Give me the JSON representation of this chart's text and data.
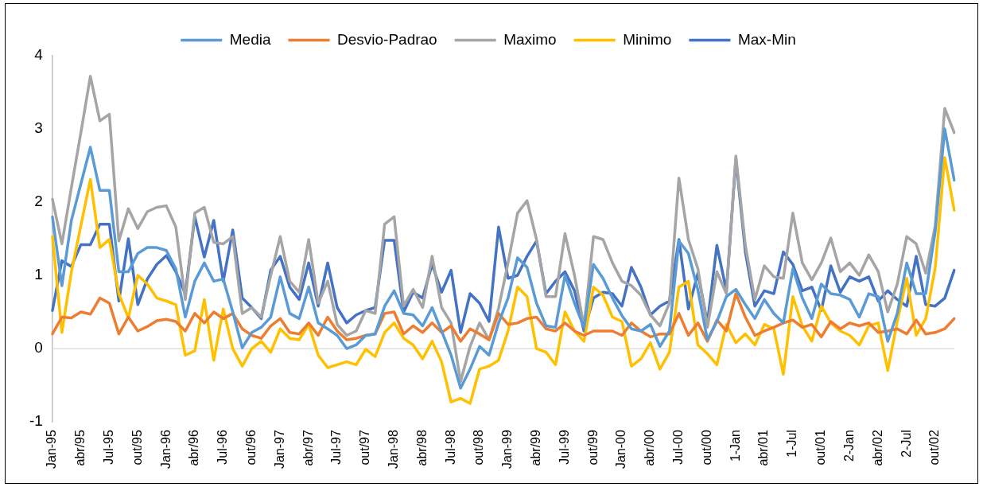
{
  "chart_data": {
    "type": "line",
    "categories": [
      "Jan-95",
      null,
      null,
      "abr/95",
      null,
      null,
      "Jul-95",
      null,
      null,
      "out/95",
      null,
      null,
      "Jan-96",
      null,
      null,
      "abr/96",
      null,
      null,
      "Jul-96",
      null,
      null,
      "out/96",
      null,
      null,
      "Jan-97",
      null,
      null,
      "abr/97",
      null,
      null,
      "Jul-97",
      null,
      null,
      "out/97",
      null,
      null,
      "Jan-98",
      null,
      null,
      "abr/98",
      null,
      null,
      "Jul-98",
      null,
      null,
      "out/98",
      null,
      null,
      "Jan-99",
      null,
      null,
      "abr/99",
      null,
      null,
      "Jul-99",
      null,
      null,
      "out/99",
      null,
      null,
      "Jan-00",
      null,
      null,
      "abr/00",
      null,
      null,
      "Jul-00",
      null,
      null,
      "out/00",
      null,
      null,
      "1-Jan",
      null,
      null,
      "abr/01",
      null,
      null,
      "1-Jul",
      null,
      null,
      "out/01",
      null,
      null,
      "2-Jan",
      null,
      null,
      "abr/02",
      null,
      null,
      "2-Jul",
      null,
      null,
      "out/02",
      null,
      null
    ],
    "series": [
      {
        "name": "Media",
        "color": "#5b9bd5",
        "values": [
          1.8,
          0.86,
          1.75,
          2.25,
          2.75,
          2.16,
          2.16,
          1.05,
          1.05,
          1.3,
          1.38,
          1.38,
          1.34,
          1.09,
          0.43,
          0.92,
          1.17,
          0.92,
          0.95,
          0.5,
          0.01,
          0.22,
          0.29,
          0.43,
          0.98,
          0.48,
          0.41,
          0.84,
          0.35,
          0.27,
          0.18,
          0.0,
          0.05,
          0.18,
          0.2,
          0.58,
          0.79,
          0.48,
          0.46,
          0.31,
          0.56,
          0.24,
          -0.09,
          -0.54,
          -0.28,
          0.03,
          -0.09,
          0.35,
          0.69,
          1.24,
          1.11,
          0.62,
          0.31,
          0.29,
          1.0,
          0.62,
          0.29,
          1.15,
          0.96,
          0.69,
          0.45,
          0.27,
          0.24,
          0.33,
          0.03,
          0.24,
          1.47,
          1.3,
          0.8,
          0.12,
          0.37,
          0.71,
          0.81,
          0.6,
          0.41,
          0.67,
          0.48,
          0.35,
          1.09,
          0.69,
          0.41,
          0.88,
          0.75,
          0.73,
          0.67,
          0.43,
          0.75,
          0.71,
          0.1,
          0.48,
          1.17,
          0.75,
          0.75,
          1.6,
          3.0,
          2.3
        ]
      },
      {
        "name": "Desvio-Padrao",
        "color": "#ed7d31",
        "values": [
          0.2,
          0.43,
          0.42,
          0.5,
          0.47,
          0.69,
          0.62,
          0.2,
          0.43,
          0.24,
          0.3,
          0.38,
          0.4,
          0.37,
          0.24,
          0.48,
          0.35,
          0.5,
          0.41,
          0.48,
          0.27,
          0.18,
          0.14,
          0.31,
          0.41,
          0.22,
          0.2,
          0.35,
          0.18,
          0.43,
          0.24,
          0.12,
          0.14,
          0.18,
          0.2,
          0.48,
          0.5,
          0.2,
          0.31,
          0.22,
          0.35,
          0.22,
          0.31,
          0.1,
          0.27,
          0.2,
          0.12,
          0.48,
          0.33,
          0.35,
          0.41,
          0.43,
          0.27,
          0.24,
          0.35,
          0.24,
          0.18,
          0.24,
          0.24,
          0.24,
          0.18,
          0.35,
          0.24,
          0.16,
          0.2,
          0.2,
          0.48,
          0.18,
          0.35,
          0.1,
          0.39,
          0.24,
          0.75,
          0.43,
          0.18,
          0.24,
          0.29,
          0.35,
          0.39,
          0.29,
          0.33,
          0.16,
          0.37,
          0.27,
          0.35,
          0.31,
          0.35,
          0.22,
          0.24,
          0.27,
          0.2,
          0.39,
          0.2,
          0.22,
          0.27,
          0.41
        ]
      },
      {
        "name": "Maximo",
        "color": "#a5a5a5",
        "values": [
          2.04,
          1.43,
          2.2,
          2.95,
          3.72,
          3.11,
          3.2,
          1.47,
          1.91,
          1.64,
          1.87,
          1.93,
          1.95,
          1.66,
          0.67,
          1.85,
          1.93,
          1.45,
          1.43,
          1.53,
          0.48,
          0.56,
          0.43,
          1.0,
          1.53,
          0.92,
          0.77,
          1.49,
          0.62,
          0.92,
          0.33,
          0.18,
          0.24,
          0.52,
          0.48,
          1.7,
          1.8,
          0.58,
          0.81,
          0.56,
          1.26,
          0.56,
          0.35,
          -0.45,
          0.03,
          0.35,
          0.12,
          0.55,
          1.17,
          1.85,
          2.02,
          1.49,
          0.71,
          0.71,
          1.57,
          1.0,
          0.3,
          1.53,
          1.49,
          1.17,
          0.92,
          0.86,
          0.73,
          0.46,
          0.31,
          0.62,
          2.33,
          1.49,
          1.09,
          0.29,
          1.05,
          0.75,
          2.63,
          1.41,
          0.67,
          1.13,
          0.98,
          0.96,
          1.85,
          1.17,
          0.94,
          1.17,
          1.51,
          1.05,
          1.17,
          1.0,
          1.28,
          1.05,
          0.5,
          0.88,
          1.53,
          1.43,
          1.03,
          1.68,
          3.28,
          2.95
        ]
      },
      {
        "name": "Minimo",
        "color": "#ffc000",
        "values": [
          1.53,
          0.22,
          1.05,
          1.68,
          2.31,
          1.38,
          1.49,
          0.75,
          0.42,
          1.0,
          0.88,
          0.69,
          0.65,
          0.6,
          -0.09,
          -0.03,
          0.67,
          -0.16,
          0.54,
          0.0,
          -0.24,
          0.0,
          0.1,
          -0.05,
          0.27,
          0.14,
          0.12,
          0.33,
          -0.09,
          -0.26,
          -0.22,
          -0.18,
          -0.22,
          -0.01,
          -0.11,
          0.22,
          0.35,
          0.14,
          0.05,
          -0.14,
          0.1,
          -0.18,
          -0.73,
          -0.68,
          -0.75,
          -0.28,
          -0.24,
          -0.16,
          0.24,
          0.84,
          0.71,
          0.0,
          -0.05,
          -0.22,
          0.5,
          0.24,
          0.1,
          0.84,
          0.73,
          0.43,
          0.37,
          -0.24,
          -0.14,
          0.08,
          -0.28,
          -0.05,
          0.84,
          0.92,
          0.05,
          -0.07,
          -0.22,
          0.33,
          0.08,
          0.2,
          0.05,
          0.33,
          0.27,
          -0.35,
          0.71,
          0.31,
          0.1,
          0.58,
          0.35,
          0.24,
          0.18,
          0.05,
          0.31,
          0.35,
          -0.3,
          0.37,
          0.96,
          0.18,
          0.41,
          1.1,
          2.61,
          1.89
        ]
      },
      {
        "name": "Max-Min",
        "color": "#4472c4",
        "values": [
          0.52,
          1.2,
          1.12,
          1.42,
          1.42,
          1.7,
          1.7,
          0.65,
          1.5,
          0.6,
          0.95,
          1.15,
          1.27,
          1.05,
          0.75,
          1.8,
          1.25,
          1.75,
          0.92,
          1.62,
          0.69,
          0.56,
          0.41,
          1.07,
          1.26,
          0.84,
          0.67,
          1.17,
          0.58,
          1.17,
          0.56,
          0.35,
          0.46,
          0.52,
          0.56,
          1.48,
          1.48,
          0.5,
          0.77,
          0.69,
          1.15,
          0.77,
          1.07,
          0.22,
          0.75,
          0.62,
          0.37,
          1.66,
          0.96,
          1.0,
          1.26,
          1.47,
          0.75,
          0.92,
          1.05,
          0.79,
          0.24,
          0.69,
          0.77,
          0.75,
          0.58,
          1.11,
          0.84,
          0.46,
          0.58,
          0.65,
          1.49,
          0.54,
          1.03,
          0.35,
          1.41,
          0.79,
          2.59,
          1.32,
          0.58,
          0.79,
          0.75,
          1.32,
          1.15,
          0.79,
          0.84,
          0.52,
          1.13,
          0.77,
          0.98,
          0.92,
          0.98,
          0.65,
          0.79,
          0.67,
          0.58,
          1.26,
          0.6,
          0.58,
          0.69,
          1.07
        ]
      }
    ],
    "ylim": [
      -1,
      4
    ],
    "yticks": [
      -1,
      0,
      1,
      2,
      3,
      4
    ],
    "legend": "top",
    "marker": "none",
    "line_style": "solid"
  }
}
